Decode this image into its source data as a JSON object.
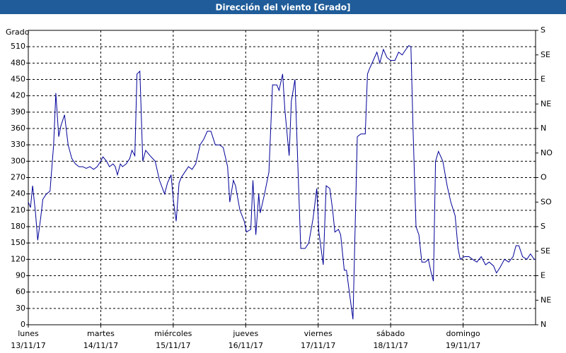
{
  "chart_data": {
    "type": "line",
    "title": "Dirección del viento [Grado]",
    "ylabel": "Grado",
    "x": [
      0,
      0.03,
      0.06,
      0.1,
      0.13,
      0.17,
      0.2,
      0.25,
      0.3,
      0.35,
      0.38,
      0.42,
      0.45,
      0.5,
      0.55,
      0.6,
      0.65,
      0.7,
      0.75,
      0.8,
      0.85,
      0.9,
      0.95,
      1.0,
      1.03,
      1.08,
      1.12,
      1.17,
      1.2,
      1.23,
      1.27,
      1.3,
      1.35,
      1.4,
      1.43,
      1.47,
      1.5,
      1.54,
      1.58,
      1.62,
      1.68,
      1.75,
      1.81,
      1.88,
      1.92,
      1.97,
      2.0,
      2.04,
      2.08,
      2.11,
      2.16,
      2.21,
      2.26,
      2.31,
      2.37,
      2.42,
      2.47,
      2.52,
      2.58,
      2.64,
      2.69,
      2.75,
      2.78,
      2.83,
      2.86,
      2.92,
      2.98,
      3.01,
      3.07,
      3.1,
      3.14,
      3.18,
      3.2,
      3.26,
      3.32,
      3.37,
      3.43,
      3.46,
      3.51,
      3.54,
      3.6,
      3.63,
      3.68,
      3.71,
      3.76,
      3.82,
      3.87,
      3.93,
      3.98,
      4.01,
      4.07,
      4.11,
      4.16,
      4.2,
      4.23,
      4.28,
      4.31,
      4.36,
      4.39,
      4.45,
      4.48,
      4.54,
      4.59,
      4.65,
      4.68,
      4.71,
      4.76,
      4.81,
      4.85,
      4.9,
      4.95,
      5.0,
      5.06,
      5.11,
      5.16,
      5.21,
      5.25,
      5.28,
      5.31,
      5.35,
      5.39,
      5.43,
      5.48,
      5.52,
      5.56,
      5.59,
      5.62,
      5.66,
      5.72,
      5.78,
      5.83,
      5.89,
      5.93,
      5.96,
      6.02,
      6.08,
      6.13,
      6.19,
      6.25,
      6.31,
      6.36,
      6.42,
      6.46,
      6.51,
      6.57,
      6.63,
      6.69,
      6.73,
      6.77,
      6.82,
      6.88,
      6.93,
      6.98,
      7.0
    ],
    "series": [
      {
        "name": "Dirección del viento",
        "color": "#000099",
        "values": [
          225,
          215,
          255,
          205,
          155,
          195,
          230,
          240,
          245,
          330,
          425,
          345,
          365,
          385,
          330,
          305,
          295,
          290,
          290,
          287,
          290,
          285,
          290,
          300,
          308,
          300,
          290,
          295,
          290,
          275,
          295,
          290,
          295,
          305,
          320,
          310,
          460,
          465,
          300,
          320,
          310,
          300,
          265,
          240,
          260,
          275,
          230,
          190,
          260,
          270,
          280,
          290,
          285,
          295,
          330,
          340,
          355,
          355,
          330,
          330,
          325,
          290,
          225,
          265,
          255,
          210,
          190,
          170,
          175,
          265,
          165,
          240,
          205,
          240,
          280,
          440,
          440,
          430,
          460,
          395,
          310,
          410,
          450,
          330,
          140,
          140,
          150,
          195,
          250,
          170,
          110,
          255,
          250,
          210,
          170,
          175,
          165,
          100,
          100,
          40,
          10,
          345,
          350,
          350,
          460,
          470,
          485,
          500,
          480,
          505,
          490,
          485,
          485,
          500,
          495,
          505,
          512,
          510,
          355,
          180,
          165,
          115,
          115,
          120,
          95,
          80,
          300,
          318,
          300,
          255,
          225,
          200,
          140,
          120,
          125,
          125,
          120,
          115,
          125,
          110,
          115,
          108,
          95,
          105,
          120,
          115,
          125,
          145,
          145,
          125,
          120,
          130,
          120,
          120
        ]
      }
    ],
    "xlim": [
      0,
      7
    ],
    "xticks": [
      {
        "value": 0,
        "label": "lunes"
      },
      {
        "value": 1,
        "label": "martes"
      },
      {
        "value": 2,
        "label": "miércoles"
      },
      {
        "value": 3,
        "label": "jueves"
      },
      {
        "value": 4,
        "label": "viernes"
      },
      {
        "value": 5,
        "label": "sábado"
      },
      {
        "value": 6,
        "label": "domingo"
      }
    ],
    "xtick_dates": [
      "13/11/17",
      "14/11/17",
      "15/11/17",
      "16/11/17",
      "17/11/17",
      "18/11/17",
      "19/11/17"
    ],
    "ylim": [
      0,
      540
    ],
    "yticks": [
      0,
      30,
      60,
      90,
      120,
      150,
      180,
      210,
      240,
      270,
      300,
      330,
      360,
      390,
      420,
      450,
      480,
      510
    ],
    "y2lim": [
      0,
      540
    ],
    "y2ticks": [
      {
        "value": 0,
        "label": "N"
      },
      {
        "value": 45,
        "label": "NE"
      },
      {
        "value": 90,
        "label": "E"
      },
      {
        "value": 135,
        "label": "SE"
      },
      {
        "value": 180,
        "label": "S"
      },
      {
        "value": 225,
        "label": "SO"
      },
      {
        "value": 270,
        "label": "O"
      },
      {
        "value": 315,
        "label": "NO"
      },
      {
        "value": 360,
        "label": "N"
      },
      {
        "value": 405,
        "label": "NE"
      },
      {
        "value": 450,
        "label": "E"
      },
      {
        "value": 495,
        "label": "SE"
      },
      {
        "value": 540,
        "label": "S"
      }
    ],
    "grid": true
  }
}
